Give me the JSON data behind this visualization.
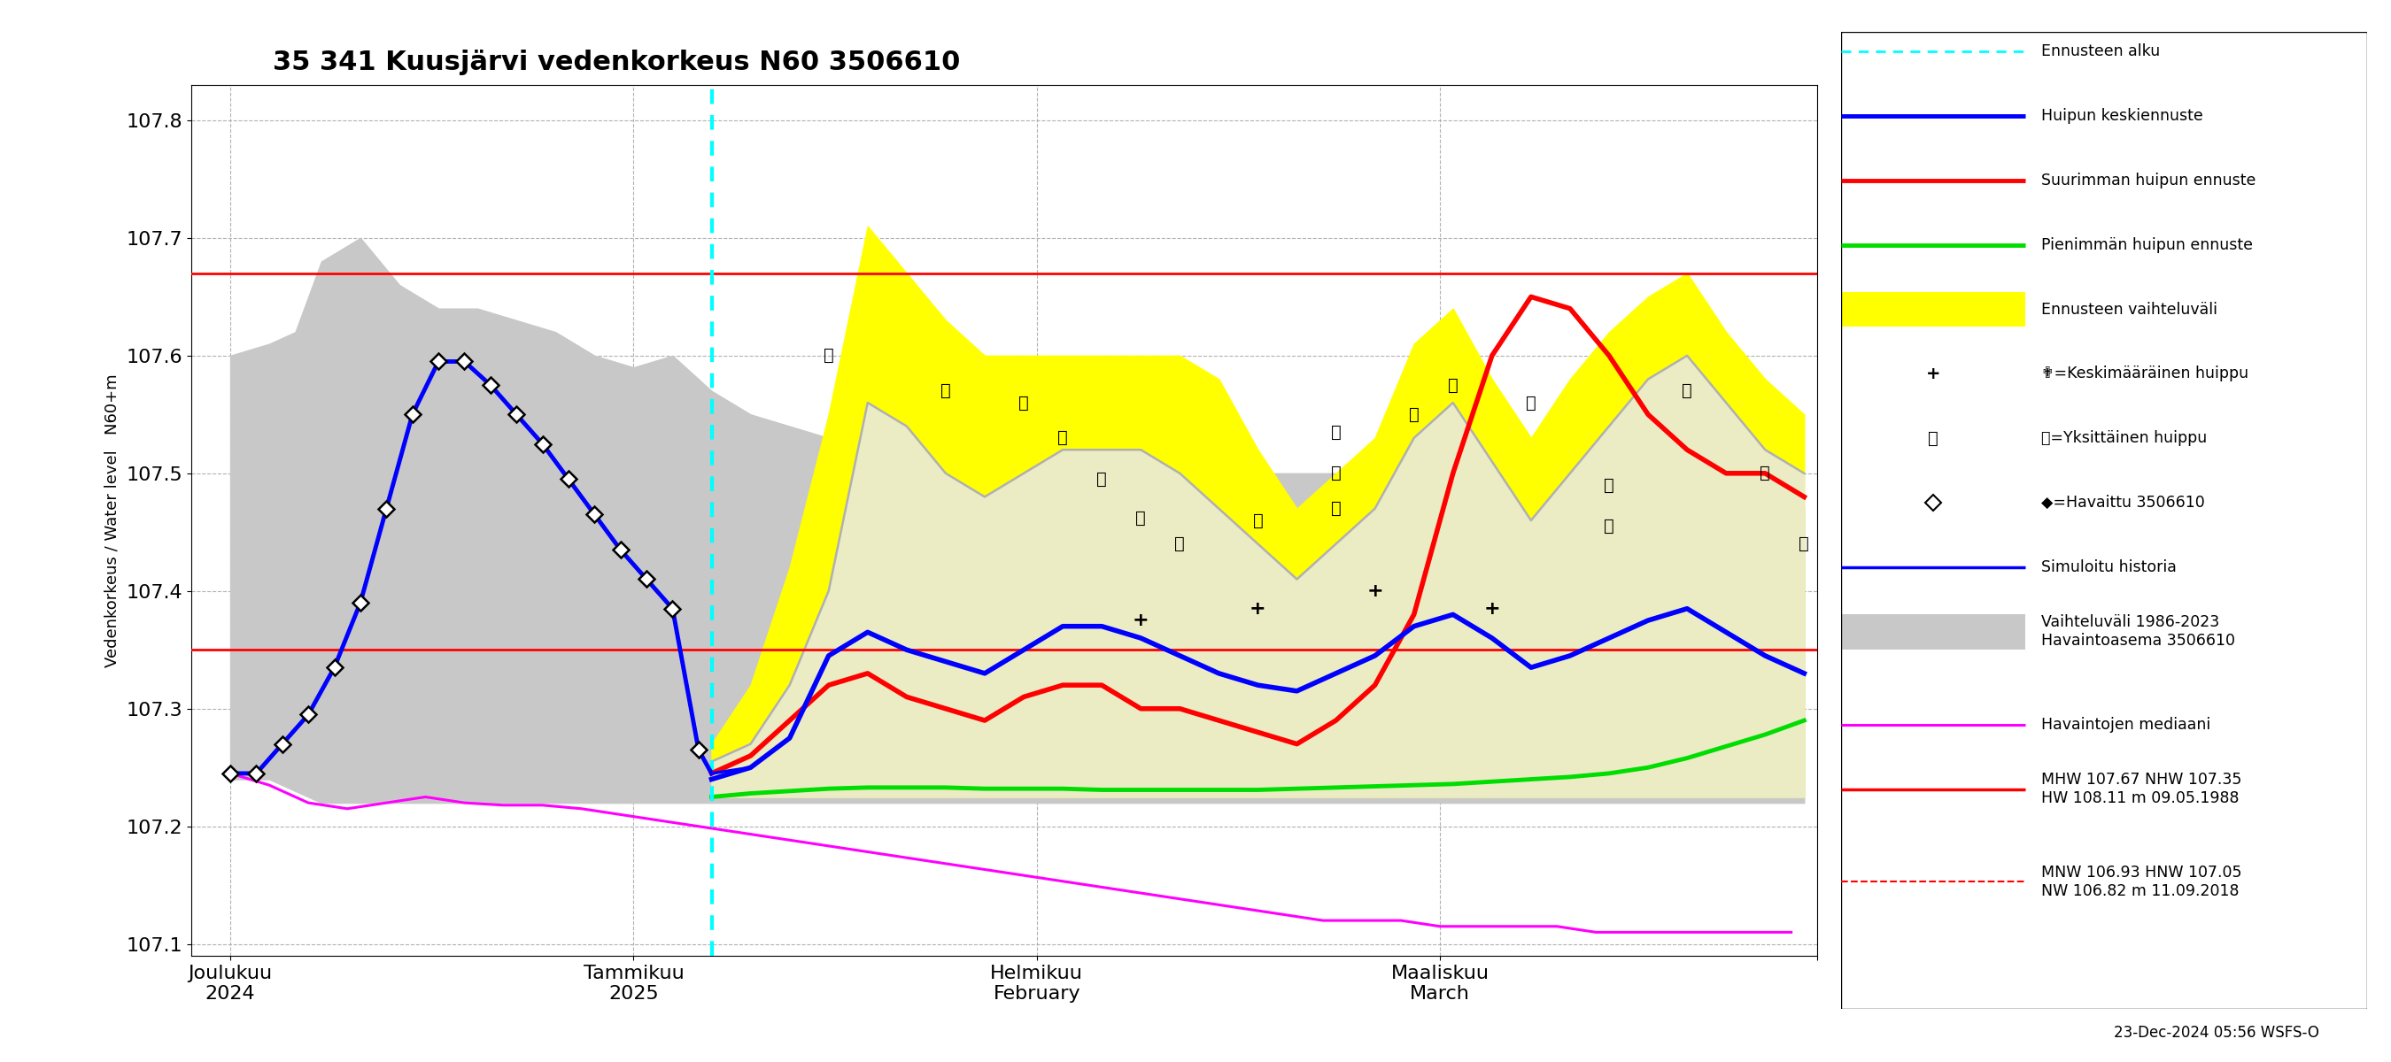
{
  "title": "35 341 Kuusjärvi vedenkorkeus N60 3506610",
  "ylabel": "Vedenkorkeus / Water level   N60+m",
  "ylim": [
    107.09,
    107.83
  ],
  "yticks": [
    107.1,
    107.2,
    107.3,
    107.4,
    107.5,
    107.6,
    107.7,
    107.8
  ],
  "red_hlines": [
    107.35,
    107.67
  ],
  "forecast_start_x": 37,
  "x_tick_positions": [
    0,
    31,
    62,
    93,
    122
  ],
  "x_tick_labels": [
    "Joulukuu\n2024",
    "Tammikuu\n2025",
    "Helmikuu\nFebruary",
    "Maaliskuu\nMarch",
    ""
  ],
  "grey_band_x": [
    0,
    3,
    5,
    7,
    10,
    13,
    16,
    19,
    22,
    25,
    28,
    31,
    34,
    37,
    40,
    43,
    46,
    49,
    52,
    55,
    58,
    61,
    64,
    67,
    70,
    73,
    76,
    79,
    82,
    85,
    88,
    91,
    94,
    97,
    100,
    103,
    106,
    109,
    112,
    115,
    118,
    121
  ],
  "grey_band_top": [
    107.6,
    107.61,
    107.62,
    107.68,
    107.7,
    107.66,
    107.64,
    107.64,
    107.63,
    107.62,
    107.6,
    107.59,
    107.6,
    107.57,
    107.55,
    107.54,
    107.53,
    107.53,
    107.52,
    107.52,
    107.51,
    107.51,
    107.51,
    107.51,
    107.51,
    107.5,
    107.5,
    107.5,
    107.5,
    107.5,
    107.5,
    107.5,
    107.5,
    107.5,
    107.5,
    107.5,
    107.49,
    107.49,
    107.49,
    107.48,
    107.48,
    107.47
  ],
  "grey_band_bot": [
    107.24,
    107.24,
    107.23,
    107.22,
    107.22,
    107.22,
    107.22,
    107.22,
    107.22,
    107.22,
    107.22,
    107.22,
    107.22,
    107.22,
    107.22,
    107.22,
    107.22,
    107.22,
    107.22,
    107.22,
    107.22,
    107.22,
    107.22,
    107.22,
    107.22,
    107.22,
    107.22,
    107.22,
    107.22,
    107.22,
    107.22,
    107.22,
    107.22,
    107.22,
    107.22,
    107.22,
    107.22,
    107.22,
    107.22,
    107.22,
    107.22,
    107.22
  ],
  "magenta_x": [
    0,
    3,
    6,
    9,
    12,
    15,
    18,
    21,
    24,
    27,
    30,
    33,
    36,
    39,
    42,
    45,
    48,
    51,
    54,
    57,
    60,
    63,
    66,
    69,
    72,
    75,
    78,
    81,
    84,
    87,
    90,
    93,
    96,
    99,
    102,
    105,
    108,
    111,
    114,
    117,
    120
  ],
  "magenta_y": [
    107.245,
    107.235,
    107.22,
    107.215,
    107.22,
    107.225,
    107.22,
    107.218,
    107.218,
    107.215,
    107.21,
    107.205,
    107.2,
    107.195,
    107.19,
    107.185,
    107.18,
    107.175,
    107.17,
    107.165,
    107.16,
    107.155,
    107.15,
    107.145,
    107.14,
    107.135,
    107.13,
    107.125,
    107.12,
    107.12,
    107.12,
    107.115,
    107.115,
    107.115,
    107.115,
    107.11,
    107.11,
    107.11,
    107.11,
    107.11,
    107.11
  ],
  "green_x": [
    37,
    40,
    43,
    46,
    49,
    52,
    55,
    58,
    61,
    64,
    67,
    70,
    73,
    76,
    79,
    82,
    85,
    88,
    91,
    94,
    97,
    100,
    103,
    106,
    109,
    112,
    115,
    118,
    121
  ],
  "green_y": [
    107.225,
    107.228,
    107.23,
    107.232,
    107.233,
    107.233,
    107.233,
    107.232,
    107.232,
    107.232,
    107.231,
    107.231,
    107.231,
    107.231,
    107.231,
    107.232,
    107.233,
    107.234,
    107.235,
    107.236,
    107.238,
    107.24,
    107.242,
    107.245,
    107.25,
    107.258,
    107.268,
    107.278,
    107.29
  ],
  "yellow_band_x": [
    37,
    40,
    43,
    46,
    49,
    52,
    55,
    58,
    61,
    64,
    67,
    70,
    73,
    76,
    79,
    82,
    85,
    88,
    91,
    94,
    97,
    100,
    103,
    106,
    109,
    112,
    115,
    118,
    121
  ],
  "yellow_band_top": [
    107.27,
    107.32,
    107.42,
    107.55,
    107.71,
    107.67,
    107.63,
    107.6,
    107.6,
    107.6,
    107.6,
    107.6,
    107.6,
    107.58,
    107.52,
    107.47,
    107.5,
    107.53,
    107.61,
    107.64,
    107.58,
    107.53,
    107.58,
    107.62,
    107.65,
    107.67,
    107.62,
    107.58,
    107.55
  ],
  "yellow_band_bot": [
    107.225,
    107.225,
    107.225,
    107.225,
    107.225,
    107.225,
    107.225,
    107.225,
    107.225,
    107.225,
    107.225,
    107.225,
    107.225,
    107.225,
    107.225,
    107.225,
    107.225,
    107.225,
    107.225,
    107.225,
    107.225,
    107.225,
    107.225,
    107.225,
    107.225,
    107.225,
    107.225,
    107.225,
    107.225
  ],
  "grey_forecast_top_x": [
    37,
    40,
    43,
    46,
    49,
    52,
    55,
    58,
    61,
    64,
    67,
    70,
    73,
    76,
    79,
    82,
    85,
    88,
    91,
    94,
    97,
    100,
    103,
    106,
    109,
    112,
    115,
    118,
    121
  ],
  "grey_forecast_top_y": [
    107.255,
    107.27,
    107.32,
    107.4,
    107.56,
    107.54,
    107.5,
    107.48,
    107.5,
    107.52,
    107.52,
    107.52,
    107.5,
    107.47,
    107.44,
    107.41,
    107.44,
    107.47,
    107.53,
    107.56,
    107.51,
    107.46,
    107.5,
    107.54,
    107.58,
    107.6,
    107.56,
    107.52,
    107.5
  ],
  "red_line_x": [
    37,
    40,
    43,
    46,
    49,
    52,
    55,
    58,
    61,
    64,
    67,
    70,
    73,
    76,
    79,
    82,
    85,
    88,
    91,
    94,
    97,
    100,
    103,
    106,
    109,
    112,
    115,
    118,
    121
  ],
  "red_line_y": [
    107.245,
    107.26,
    107.29,
    107.32,
    107.33,
    107.31,
    107.3,
    107.29,
    107.31,
    107.32,
    107.32,
    107.3,
    107.3,
    107.29,
    107.28,
    107.27,
    107.29,
    107.32,
    107.38,
    107.5,
    107.6,
    107.65,
    107.64,
    107.6,
    107.55,
    107.52,
    107.5,
    107.5,
    107.48
  ],
  "blue_forecast_x": [
    37,
    40,
    43,
    46,
    49,
    52,
    55,
    58,
    61,
    64,
    67,
    70,
    73,
    76,
    79,
    82,
    85,
    88,
    91,
    94,
    97,
    100,
    103,
    106,
    109,
    112,
    115,
    118,
    121
  ],
  "blue_forecast_y": [
    107.24,
    107.25,
    107.275,
    107.345,
    107.365,
    107.35,
    107.34,
    107.33,
    107.35,
    107.37,
    107.37,
    107.36,
    107.345,
    107.33,
    107.32,
    107.315,
    107.33,
    107.345,
    107.37,
    107.38,
    107.36,
    107.335,
    107.345,
    107.36,
    107.375,
    107.385,
    107.365,
    107.345,
    107.33
  ],
  "observed_x": [
    0,
    2,
    4,
    6,
    8,
    10,
    12,
    14,
    16,
    18,
    20,
    22,
    24,
    26,
    28,
    30,
    32,
    34,
    36,
    37
  ],
  "observed_y": [
    107.245,
    107.245,
    107.27,
    107.295,
    107.335,
    107.39,
    107.47,
    107.55,
    107.595,
    107.595,
    107.575,
    107.55,
    107.525,
    107.495,
    107.465,
    107.435,
    107.41,
    107.385,
    107.265,
    107.245
  ],
  "sim_history_x": [
    0,
    2,
    4,
    6,
    8,
    10,
    12,
    14,
    16,
    18,
    20,
    22,
    24,
    26,
    28,
    30,
    32,
    34,
    36,
    37,
    40,
    43,
    46,
    49,
    52,
    55,
    58,
    61,
    64,
    67,
    70,
    73,
    76,
    79,
    82,
    85,
    88,
    91,
    94,
    97,
    100,
    103,
    106,
    109,
    112,
    115,
    118,
    121
  ],
  "sim_history_y": [
    107.245,
    107.245,
    107.27,
    107.295,
    107.335,
    107.39,
    107.47,
    107.55,
    107.595,
    107.595,
    107.575,
    107.55,
    107.525,
    107.495,
    107.465,
    107.435,
    107.41,
    107.385,
    107.265,
    107.245,
    107.25,
    107.275,
    107.345,
    107.365,
    107.35,
    107.34,
    107.33,
    107.35,
    107.37,
    107.37,
    107.36,
    107.345,
    107.33,
    107.32,
    107.315,
    107.33,
    107.345,
    107.37,
    107.38,
    107.36,
    107.335,
    107.345,
    107.36,
    107.375,
    107.385,
    107.365,
    107.345,
    107.33
  ],
  "background_color": "white",
  "plot_bg_color": "white",
  "grid_color": "#aaaaaa",
  "date_label": "23-Dec-2024 05:56 WSFS-O",
  "x_min": -3,
  "x_max": 122
}
